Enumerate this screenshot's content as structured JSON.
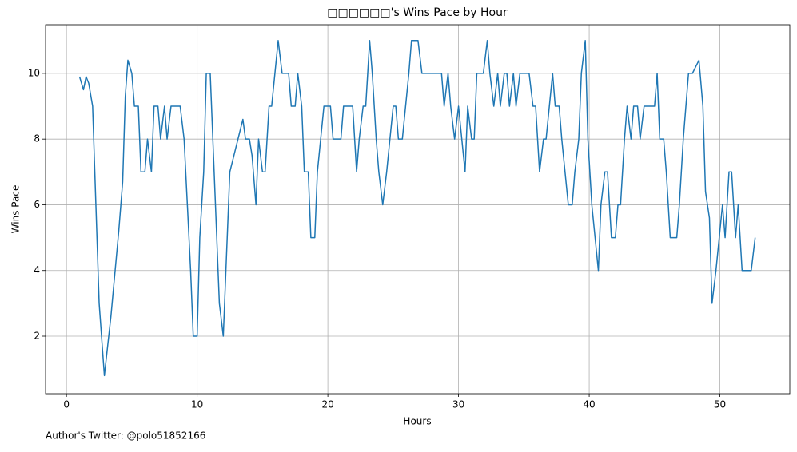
{
  "chart_data": {
    "type": "line",
    "title": "□□□□□□'s Wins Pace by Hour",
    "x_label": "Hours",
    "y_label": "Wins Pace",
    "footnote": "Author's Twitter: @polo51852166",
    "x": [
      1.0,
      1.3,
      1.5,
      1.7,
      2.0,
      2.5,
      2.9,
      3.4,
      4.0,
      4.3,
      4.5,
      4.7,
      5.0,
      5.2,
      5.5,
      5.7,
      6.0,
      6.2,
      6.5,
      6.7,
      7.0,
      7.2,
      7.5,
      7.7,
      8.0,
      8.7,
      9.0,
      9.5,
      9.7,
      10.0,
      10.2,
      10.5,
      10.7,
      11.0,
      11.4,
      11.7,
      12.0,
      12.2,
      12.5,
      13.5,
      13.7,
      14.0,
      14.2,
      14.5,
      14.7,
      15.0,
      15.2,
      15.5,
      15.7,
      16.2,
      16.5,
      17.0,
      17.2,
      17.5,
      17.7,
      18.0,
      18.2,
      18.5,
      18.7,
      19.0,
      19.2,
      19.7,
      20.2,
      20.4,
      21.0,
      21.2,
      21.9,
      22.2,
      22.4,
      22.7,
      22.9,
      23.2,
      23.4,
      23.7,
      23.9,
      24.2,
      24.5,
      25.0,
      25.2,
      25.4,
      25.7,
      26.2,
      26.4,
      26.9,
      27.2,
      28.7,
      28.9,
      29.2,
      29.4,
      29.7,
      30.0,
      30.5,
      30.7,
      31.0,
      31.2,
      31.4,
      31.9,
      32.2,
      32.4,
      32.7,
      33.0,
      33.2,
      33.5,
      33.7,
      33.9,
      34.2,
      34.4,
      34.7,
      35.4,
      35.7,
      35.9,
      36.2,
      36.5,
      36.7,
      37.2,
      37.4,
      37.7,
      37.9,
      38.4,
      38.7,
      38.9,
      39.2,
      39.4,
      39.7,
      39.9,
      40.2,
      40.7,
      40.9,
      41.2,
      41.4,
      41.7,
      42.0,
      42.2,
      42.4,
      42.7,
      42.9,
      43.2,
      43.4,
      43.7,
      43.9,
      44.2,
      45.0,
      45.2,
      45.4,
      45.7,
      45.9,
      46.2,
      46.7,
      46.9,
      47.2,
      47.6,
      47.9,
      48.4,
      48.7,
      48.9,
      49.2,
      49.4,
      49.7,
      50.2,
      50.4,
      50.7,
      50.9,
      51.2,
      51.4,
      51.7,
      52.4,
      52.7
    ],
    "series": [
      {
        "name": "Wins Pace",
        "color": "#1f77b4",
        "values": [
          9.9,
          9.5,
          9.9,
          9.7,
          9.0,
          3.0,
          0.8,
          2.6,
          5.2,
          6.7,
          9.3,
          10.4,
          10.0,
          9.0,
          9.0,
          7.0,
          7.0,
          8.0,
          7.0,
          9.0,
          9.0,
          8.0,
          9.0,
          8.0,
          9.0,
          9.0,
          8.0,
          4.0,
          2.0,
          2.0,
          5.0,
          7.0,
          10.0,
          10.0,
          6.0,
          3.0,
          2.0,
          4.0,
          7.0,
          8.6,
          8.0,
          8.0,
          7.5,
          6.0,
          8.0,
          7.0,
          7.0,
          9.0,
          9.0,
          11.0,
          10.0,
          10.0,
          9.0,
          9.0,
          10.0,
          9.0,
          7.0,
          7.0,
          5.0,
          5.0,
          7.0,
          9.0,
          9.0,
          8.0,
          8.0,
          9.0,
          9.0,
          7.0,
          8.0,
          9.0,
          9.0,
          11.0,
          10.0,
          8.0,
          7.0,
          6.0,
          7.0,
          9.0,
          9.0,
          8.0,
          8.0,
          10.0,
          11.0,
          11.0,
          10.0,
          10.0,
          9.0,
          10.0,
          9.0,
          8.0,
          9.0,
          7.0,
          9.0,
          8.0,
          8.0,
          10.0,
          10.0,
          11.0,
          10.0,
          9.0,
          10.0,
          9.0,
          10.0,
          10.0,
          9.0,
          10.0,
          9.0,
          10.0,
          10.0,
          9.0,
          9.0,
          7.0,
          8.0,
          8.0,
          10.0,
          9.0,
          9.0,
          8.0,
          6.0,
          6.0,
          7.0,
          8.0,
          10.0,
          11.0,
          8.0,
          6.0,
          4.0,
          6.0,
          7.0,
          7.0,
          5.0,
          5.0,
          6.0,
          6.0,
          8.0,
          9.0,
          8.0,
          9.0,
          9.0,
          8.0,
          9.0,
          9.0,
          10.0,
          8.0,
          8.0,
          7.0,
          5.0,
          5.0,
          6.0,
          8.0,
          10.0,
          10.0,
          10.4,
          9.0,
          6.4,
          5.6,
          3.0,
          4.0,
          6.0,
          5.0,
          7.0,
          7.0,
          5.0,
          6.0,
          4.0,
          4.0,
          5.0
        ]
      }
    ],
    "xlim": [
      -1.6,
      55.35
    ],
    "ylim": [
      0.25,
      11.48
    ],
    "xticks": [
      0,
      10,
      20,
      30,
      40,
      50
    ],
    "yticks": [
      2,
      4,
      6,
      8,
      10
    ],
    "grid": true
  }
}
